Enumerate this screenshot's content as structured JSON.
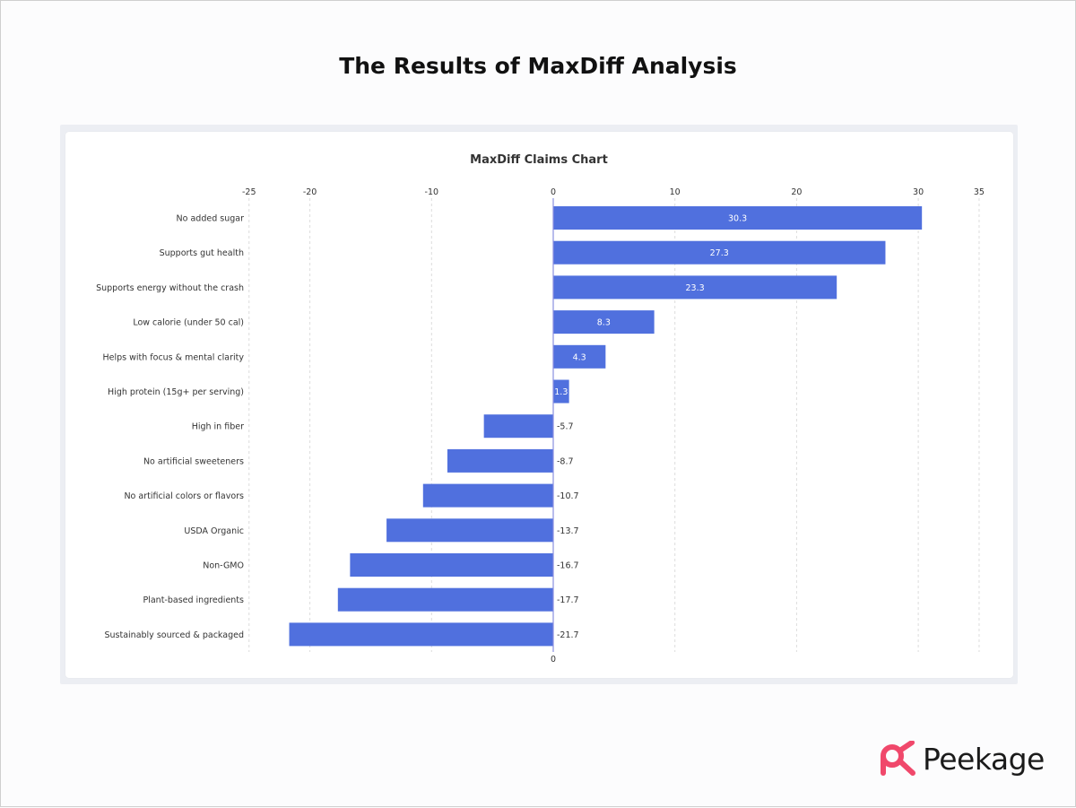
{
  "page": {
    "title": "The Results of MaxDiff Analysis"
  },
  "brand": {
    "name": "Peekage",
    "logo_icon": "peekage-logo-icon",
    "logo_color": "#f0486b"
  },
  "colors": {
    "bar": "#5070de",
    "grid": "#dcdcdc",
    "axis": "#8a8fe0",
    "text": "#333333"
  },
  "chart_data": {
    "type": "bar",
    "orientation": "horizontal",
    "title": "MaxDiff Claims Chart",
    "xlabel": "",
    "ylabel": "",
    "xlim": [
      -25,
      35
    ],
    "x_ticks": [
      -25,
      -20,
      -10,
      0,
      10,
      20,
      30,
      35
    ],
    "x_tick_labels": [
      "-25",
      "-20",
      "-10",
      "0",
      "10",
      "20",
      "30",
      "35"
    ],
    "bottom_tick_label": "0",
    "grid": "vertical dashed",
    "legend": "none",
    "categories": [
      "No added sugar",
      "Supports gut health",
      "Supports energy without the crash",
      "Low calorie (under 50 cal)",
      "Helps with focus & mental clarity",
      "High protein (15g+ per serving)",
      "High in fiber",
      "No artificial sweeteners",
      "No artificial colors or flavors",
      "USDA Organic",
      "Non-GMO",
      "Plant-based ingredients",
      "Sustainably sourced & packaged"
    ],
    "values": [
      30.3,
      27.3,
      23.3,
      8.3,
      4.3,
      1.3,
      -5.7,
      -8.7,
      -10.7,
      -13.7,
      -16.7,
      -17.7,
      -21.7
    ],
    "value_labels": [
      "30.3",
      "27.3",
      "23.3",
      "8.3",
      "4.3",
      "1.3",
      "-5.7",
      "-8.7",
      "-10.7",
      "-13.7",
      "-16.7",
      "-17.7",
      "-21.7"
    ]
  }
}
